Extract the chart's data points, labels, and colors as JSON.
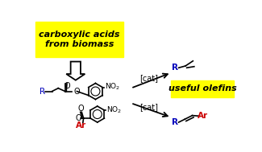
{
  "bg_color": "#ffffff",
  "yellow_color": "#ffff00",
  "black_color": "#000000",
  "blue_color": "#0000bb",
  "red_color": "#cc0000",
  "text_box1": "carboxylic acids\nfrom biomass",
  "text_box2": "useful olefins",
  "cat_label": "[cat]",
  "title_fontsize": 8.0,
  "figsize": [
    3.25,
    1.89
  ],
  "dpi": 100
}
